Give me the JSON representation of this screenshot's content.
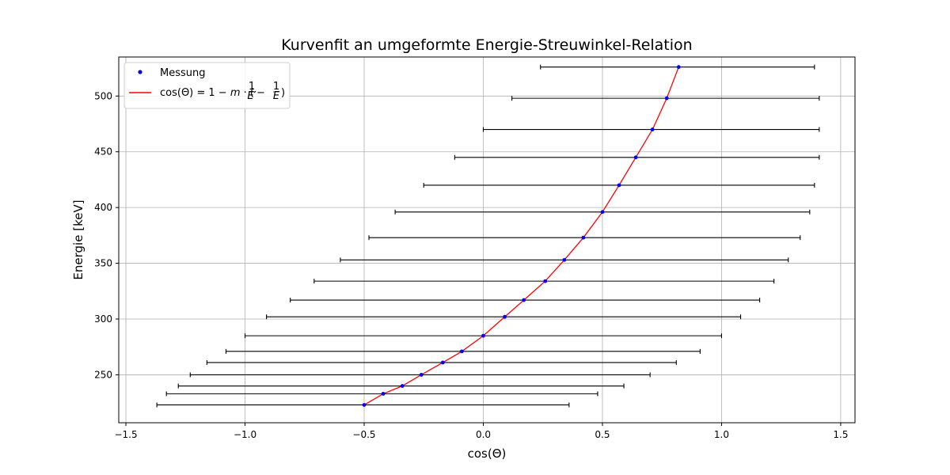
{
  "chart_data": {
    "type": "scatter",
    "title": "Kurvenfit an umgeformte Energie-Streuwinkel-Relation",
    "xlabel": "cos(Θ)",
    "ylabel": "Energie [keV]",
    "xlim": [
      -1.53,
      1.56
    ],
    "ylim": [
      207,
      535
    ],
    "xticks": [
      -1.5,
      -1.0,
      -0.5,
      0.0,
      0.5,
      1.0,
      1.5
    ],
    "xtick_labels": [
      "−1.5",
      "−1.0",
      "−0.5",
      "0.0",
      "0.5",
      "1.0",
      "1.5"
    ],
    "yticks": [
      250,
      300,
      350,
      400,
      450,
      500
    ],
    "ytick_labels": [
      "250",
      "300",
      "350",
      "400",
      "450",
      "500"
    ],
    "grid": true,
    "legend_position": "top-left",
    "colors": {
      "points": "#0000ff",
      "fit": "#ff0000",
      "errorbars": "#000000",
      "grid": "#b0b0b0"
    },
    "series": [
      {
        "name": "Messung",
        "kind": "points_with_xerr",
        "points": [
          {
            "x": -0.5,
            "y": 223,
            "xerr_low": -1.37,
            "xerr_high": 0.36
          },
          {
            "x": -0.42,
            "y": 233,
            "xerr_low": -1.33,
            "xerr_high": 0.48
          },
          {
            "x": -0.34,
            "y": 240,
            "xerr_low": -1.28,
            "xerr_high": 0.59
          },
          {
            "x": -0.26,
            "y": 250,
            "xerr_low": -1.23,
            "xerr_high": 0.7
          },
          {
            "x": -0.17,
            "y": 261,
            "xerr_low": -1.16,
            "xerr_high": 0.81
          },
          {
            "x": -0.09,
            "y": 271,
            "xerr_low": -1.08,
            "xerr_high": 0.91
          },
          {
            "x": 0.0,
            "y": 285,
            "xerr_low": -1.0,
            "xerr_high": 1.0
          },
          {
            "x": 0.09,
            "y": 302,
            "xerr_low": -0.91,
            "xerr_high": 1.08
          },
          {
            "x": 0.17,
            "y": 317,
            "xerr_low": -0.81,
            "xerr_high": 1.16
          },
          {
            "x": 0.26,
            "y": 334,
            "xerr_low": -0.71,
            "xerr_high": 1.22
          },
          {
            "x": 0.34,
            "y": 353,
            "xerr_low": -0.6,
            "xerr_high": 1.28
          },
          {
            "x": 0.42,
            "y": 373,
            "xerr_low": -0.48,
            "xerr_high": 1.33
          },
          {
            "x": 0.5,
            "y": 396,
            "xerr_low": -0.37,
            "xerr_high": 1.37
          },
          {
            "x": 0.57,
            "y": 420,
            "xerr_low": -0.25,
            "xerr_high": 1.39
          },
          {
            "x": 0.64,
            "y": 445,
            "xerr_low": -0.12,
            "xerr_high": 1.41
          },
          {
            "x": 0.71,
            "y": 470,
            "xerr_low": 0.0,
            "xerr_high": 1.41
          },
          {
            "x": 0.77,
            "y": 498,
            "xerr_low": 0.12,
            "xerr_high": 1.41
          },
          {
            "x": 0.82,
            "y": 526,
            "xerr_low": 0.24,
            "xerr_high": 1.39
          }
        ]
      },
      {
        "name": "cos(Θ) = 1 − m · (1/E′ − 1/E)",
        "kind": "fit_line",
        "points": [
          {
            "x": -0.5,
            "y": 223
          },
          {
            "x": -0.42,
            "y": 233
          },
          {
            "x": -0.34,
            "y": 240
          },
          {
            "x": -0.26,
            "y": 250
          },
          {
            "x": -0.17,
            "y": 261
          },
          {
            "x": -0.09,
            "y": 271
          },
          {
            "x": 0.0,
            "y": 285
          },
          {
            "x": 0.09,
            "y": 302
          },
          {
            "x": 0.17,
            "y": 317
          },
          {
            "x": 0.26,
            "y": 334
          },
          {
            "x": 0.34,
            "y": 353
          },
          {
            "x": 0.42,
            "y": 373
          },
          {
            "x": 0.5,
            "y": 396
          },
          {
            "x": 0.57,
            "y": 420
          },
          {
            "x": 0.64,
            "y": 445
          },
          {
            "x": 0.71,
            "y": 470
          },
          {
            "x": 0.77,
            "y": 498
          },
          {
            "x": 0.82,
            "y": 526
          }
        ]
      }
    ]
  },
  "legend": {
    "items": [
      {
        "label": "Messung",
        "key": "markers"
      },
      {
        "label_parts": {
          "lhs": "cos(Θ) = 1 − ",
          "m": "m",
          "dot": " · (",
          "one": "1",
          "eprime": "E′",
          "minus": " − ",
          "e": "E",
          "close": ")"
        },
        "key": "line"
      }
    ]
  }
}
